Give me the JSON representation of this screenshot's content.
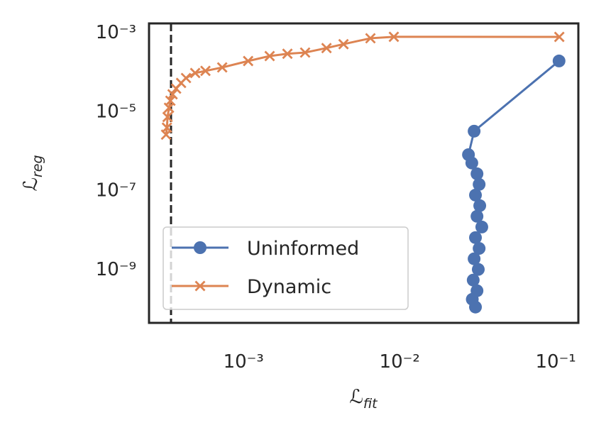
{
  "chart_data": {
    "type": "line",
    "xlabel": "ℒfit",
    "ylabel": "ℒreg",
    "xscale": "log",
    "yscale": "log",
    "xlim": [
      0.000248,
      0.1396
    ],
    "ylim": [
      4.3e-11,
      0.00164
    ],
    "xticks": [
      {
        "value": 0.001,
        "label": "10⁻³"
      },
      {
        "value": 0.01,
        "label": "10⁻²"
      },
      {
        "value": 0.1,
        "label": "10⁻¹"
      }
    ],
    "yticks": [
      {
        "value": 0.001,
        "label": "10⁻³"
      },
      {
        "value": 1e-05,
        "label": "10⁻⁵"
      },
      {
        "value": 1e-07,
        "label": "10⁻⁷"
      },
      {
        "value": 1e-09,
        "label": "10⁻⁹"
      }
    ],
    "grid": false,
    "legend": "lower left",
    "vline": {
      "x": 0.000343,
      "color": "#262626",
      "style": "dashed"
    },
    "series": [
      {
        "name": "Uninformed",
        "color": "#4c72b0",
        "marker": "circle",
        "x": [
          0.105,
          0.03,
          0.0276,
          0.029,
          0.0313,
          0.0323,
          0.0306,
          0.0326,
          0.0313,
          0.0336,
          0.0306,
          0.0323,
          0.03,
          0.0319,
          0.0296,
          0.0313,
          0.0292,
          0.0306
        ],
        "values": [
          0.000184,
          3.07e-06,
          7.8e-07,
          4.8e-07,
          2.56e-07,
          1.38e-07,
          7.4e-08,
          4e-08,
          2.15e-08,
          1.15e-08,
          6.2e-09,
          3.3e-09,
          1.8e-09,
          9.7e-10,
          5.2e-10,
          2.8e-10,
          1.7e-10,
          1.08e-10
        ]
      },
      {
        "name": "Dynamic",
        "color": "#dd8452",
        "marker": "x",
        "x": [
          0.1054,
          0.00918,
          0.0065,
          0.00437,
          0.0034,
          0.00248,
          0.00191,
          0.00147,
          0.00107,
          0.00073,
          0.00057,
          0.00049,
          0.000428,
          0.000398,
          0.00037,
          0.000351,
          0.00034,
          0.000333,
          0.000326,
          0.000323,
          0.000319
        ],
        "values": [
          0.000748,
          0.00075,
          0.00069,
          0.00049,
          0.00039,
          0.0003,
          0.00028,
          0.000245,
          0.000183,
          0.000126,
          0.000103,
          9.1e-05,
          6.8e-05,
          5.1e-05,
          3.66e-05,
          2.63e-05,
          1.81e-05,
          1.2e-05,
          7e-06,
          3.77e-06,
          2.5e-06
        ]
      }
    ]
  }
}
